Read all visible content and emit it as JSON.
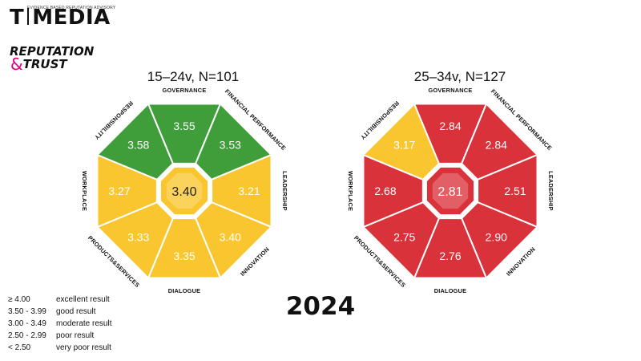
{
  "branding": {
    "tagline": "EVIDENCE BASED REPUTATION ADVISORY",
    "logo_left": "T",
    "logo_right": "MEDIA",
    "logo2_line1": "REPUTATION",
    "logo2_amp": "&",
    "logo2_line2": "TRUST"
  },
  "year": "2024",
  "dimensions": [
    "GOVERNANCE",
    "FINANCIAL PERFORMANCE",
    "LEADERSHIP",
    "INNOVATION",
    "DIALOGUE",
    "PRODUCTS&SERVICES",
    "WORKPLACE",
    "RESPONSIBILITY"
  ],
  "panels": [
    {
      "title": "15–24v, N=101",
      "center": "3.40",
      "values": [
        "3.55",
        "3.53",
        "3.21",
        "3.40",
        "3.35",
        "3.33",
        "3.27",
        "3.58"
      ]
    },
    {
      "title": "25–34v, N=127",
      "center": "2.81",
      "values": [
        "2.84",
        "2.84",
        "2.51",
        "2.90",
        "2.76",
        "2.75",
        "2.68",
        "3.17"
      ]
    }
  ],
  "legend": [
    {
      "range": "≥ 4.00",
      "label": "excellent result"
    },
    {
      "range": "3.50 - 3.99",
      "label": "good result"
    },
    {
      "range": "3.00 - 3.49",
      "label": "moderate result"
    },
    {
      "range": "2.50 - 2.99",
      "label": "poor result"
    },
    {
      "range": "< 2.50",
      "label": "very poor result"
    }
  ],
  "colors": {
    "good": "#3f9e3a",
    "moderate": "#f9c62f",
    "poor": "#d9323a",
    "outline": "#ffffff"
  }
}
